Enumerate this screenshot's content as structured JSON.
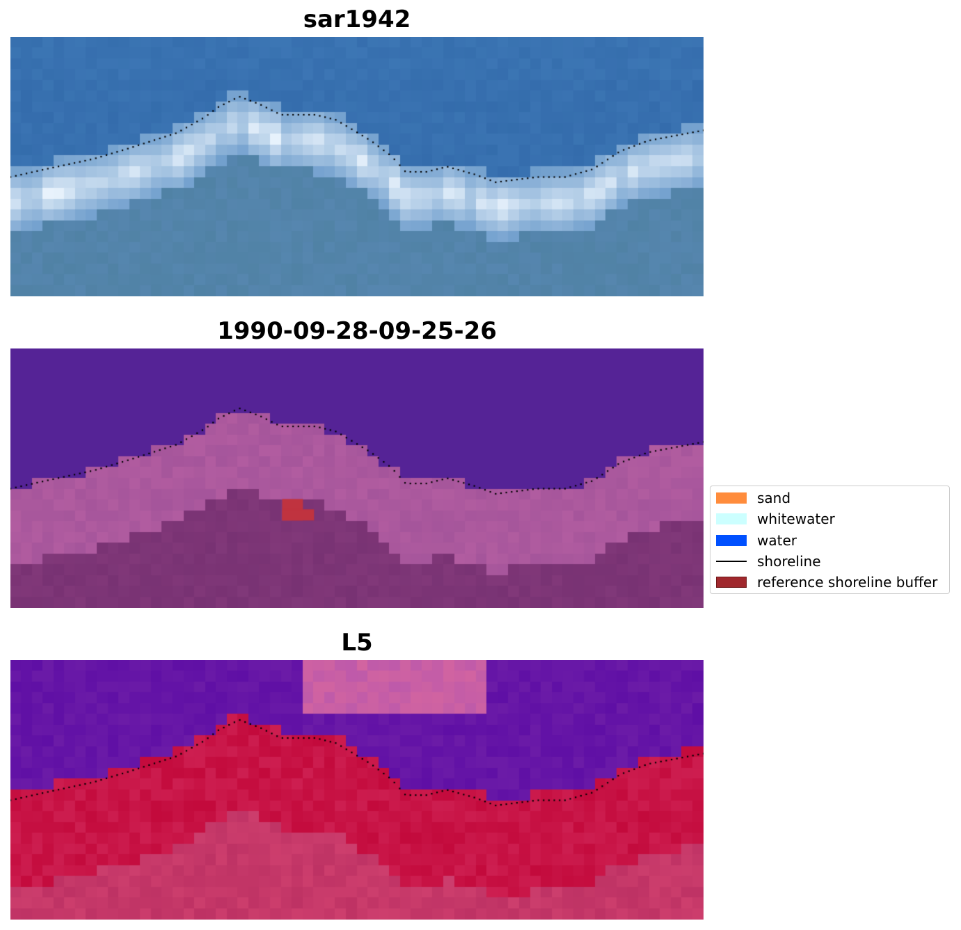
{
  "panels": [
    {
      "title": "sar1942",
      "style": "sar"
    },
    {
      "title": "1990-09-28-09-25-26",
      "style": "classified"
    },
    {
      "title": "L5",
      "style": "ratio"
    }
  ],
  "legend": {
    "items": [
      {
        "label": "sand",
        "color": "#ff8c3c",
        "kind": "patch"
      },
      {
        "label": "whitewater",
        "color": "#ccffff",
        "kind": "patch"
      },
      {
        "label": "water",
        "color": "#0050ff",
        "kind": "patch"
      },
      {
        "label": "shoreline",
        "color": "#000000",
        "kind": "line"
      },
      {
        "label": "reference shoreline buffer",
        "color": "#a0282d",
        "kind": "patch"
      }
    ]
  },
  "shoreline": {
    "color": "#000000",
    "points": [
      [
        0,
        0.54
      ],
      [
        0.05,
        0.51
      ],
      [
        0.12,
        0.47
      ],
      [
        0.17,
        0.43
      ],
      [
        0.24,
        0.37
      ],
      [
        0.28,
        0.31
      ],
      [
        0.3,
        0.27
      ],
      [
        0.33,
        0.23
      ],
      [
        0.36,
        0.26
      ],
      [
        0.39,
        0.3
      ],
      [
        0.44,
        0.3
      ],
      [
        0.47,
        0.32
      ],
      [
        0.52,
        0.4
      ],
      [
        0.55,
        0.46
      ],
      [
        0.57,
        0.52
      ],
      [
        0.6,
        0.52
      ],
      [
        0.63,
        0.5
      ],
      [
        0.67,
        0.53
      ],
      [
        0.7,
        0.56
      ],
      [
        0.73,
        0.55
      ],
      [
        0.76,
        0.54
      ],
      [
        0.8,
        0.54
      ],
      [
        0.84,
        0.51
      ],
      [
        0.88,
        0.44
      ],
      [
        0.92,
        0.4
      ],
      [
        0.96,
        0.38
      ],
      [
        1,
        0.36
      ]
    ]
  }
}
